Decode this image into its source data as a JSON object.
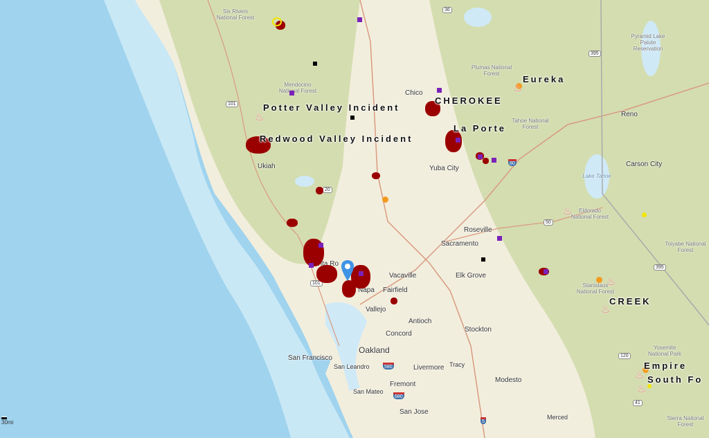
{
  "map": {
    "colors": {
      "ocean_deep": "#9fd3ee",
      "ocean_shallow": "#c9e8f5",
      "land": "#f2eedd",
      "forest": "#cfd9a8",
      "perimeter": "#9b0000",
      "facility": "#7a22b8",
      "pin": "#3f94e6",
      "flame": "#f07f86"
    },
    "incidents": [
      {
        "label": "Potter Valley Incident"
      },
      {
        "label": "Redwood Valley Incident"
      },
      {
        "label": "CHEROKEE"
      },
      {
        "label": "La Porte"
      },
      {
        "label": "Eureka"
      },
      {
        "label": "CREEK"
      },
      {
        "label": "Empire"
      },
      {
        "label": "South Fo"
      }
    ],
    "cities": [
      "Ukiah",
      "Chico",
      "Yuba City",
      "Roseville",
      "Sacramento",
      "Elk Grove",
      "Vacaville",
      "anta Ro",
      "Napa",
      "Fairfield",
      "Vallejo",
      "Antioch",
      "Concord",
      "Stockton",
      "Oakland",
      "San Francisco",
      "San Leandro",
      "Livermore",
      "Tracy",
      "Fremont",
      "San Mateo",
      "San Jose",
      "Modesto",
      "Merced",
      "Reno",
      "Carson City"
    ],
    "areas": [
      "Six Rivers National Forest",
      "Mendocino National Forest",
      "Plumas National Forest",
      "Tahoe National Forest",
      "Eldorado National Forest",
      "Stanislaus National Forest",
      "Toiyabe National Forest",
      "Yosemite National Park",
      "Sierra National Forest",
      "Pyramid Lake Paiute Reservation",
      "Lake Tahoe"
    ],
    "routes": [
      "101",
      "101",
      "20",
      "36",
      "395",
      "395",
      "80",
      "50",
      "120",
      "41",
      "580",
      "680",
      "5"
    ],
    "scale": "30mi",
    "icons": {
      "pin": "map-marker-icon",
      "flame": "fire-icon",
      "facility": "square-marker-icon"
    }
  }
}
